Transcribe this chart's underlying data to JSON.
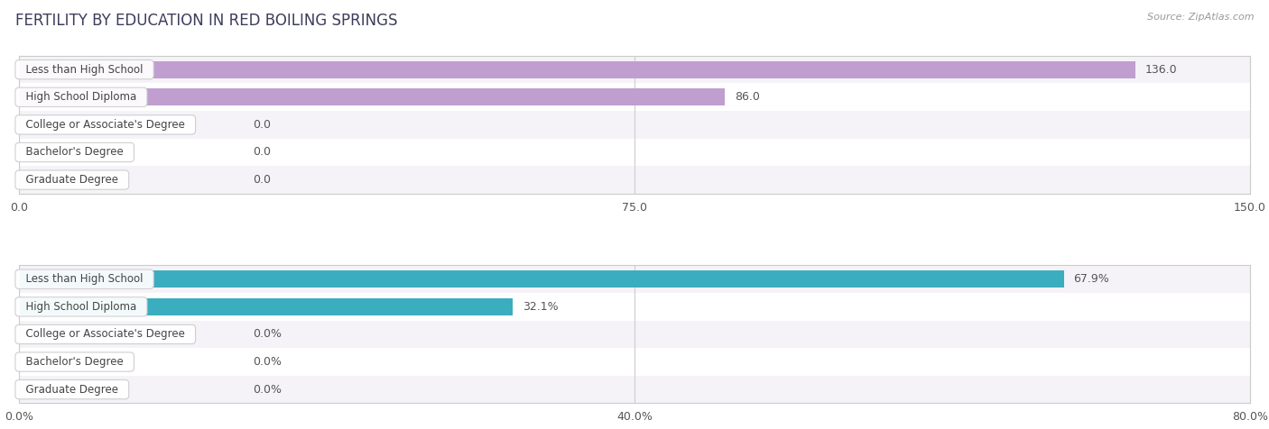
{
  "title": "FERTILITY BY EDUCATION IN RED BOILING SPRINGS",
  "source": "Source: ZipAtlas.com",
  "top_chart": {
    "categories": [
      "Less than High School",
      "High School Diploma",
      "College or Associate's Degree",
      "Bachelor's Degree",
      "Graduate Degree"
    ],
    "values": [
      136.0,
      86.0,
      0.0,
      0.0,
      0.0
    ],
    "labels": [
      "136.0",
      "86.0",
      "0.0",
      "0.0",
      "0.0"
    ],
    "bar_color": "#c09fd0",
    "xlim": [
      0,
      150
    ],
    "xticks": [
      0.0,
      75.0,
      150.0
    ],
    "xticklabels": [
      "0.0",
      "75.0",
      "150.0"
    ]
  },
  "bottom_chart": {
    "categories": [
      "Less than High School",
      "High School Diploma",
      "College or Associate's Degree",
      "Bachelor's Degree",
      "Graduate Degree"
    ],
    "values": [
      67.9,
      32.1,
      0.0,
      0.0,
      0.0
    ],
    "labels": [
      "67.9%",
      "32.1%",
      "0.0%",
      "0.0%",
      "0.0%"
    ],
    "bar_color": "#3aadbe",
    "xlim": [
      0,
      80
    ],
    "xticks": [
      0.0,
      40.0,
      80.0
    ],
    "xticklabels": [
      "0.0%",
      "40.0%",
      "80.0%"
    ]
  },
  "title_color": "#3d3d5c",
  "source_color": "#999999",
  "title_fontsize": 12,
  "label_fontsize": 8.5,
  "value_fontsize": 9,
  "tick_fontsize": 9,
  "bar_height": 0.62,
  "row_bg_even": "#f5f3f8",
  "row_bg_odd": "#ffffff",
  "pill_facecolor": "#ffffff",
  "pill_edgecolor": "#cccccc",
  "label_text_color": "#444444",
  "value_text_color": "#555555",
  "spine_color": "#cccccc"
}
